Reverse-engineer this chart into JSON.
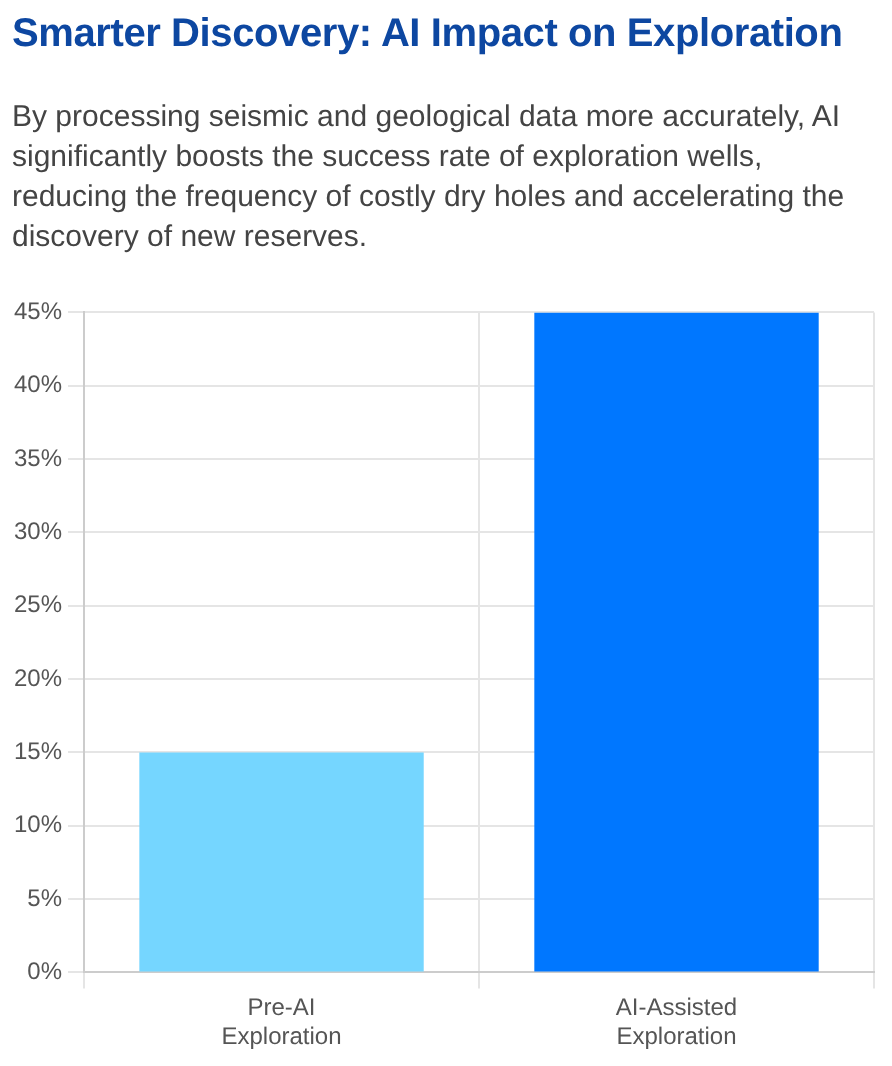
{
  "chart_data": {
    "type": "bar",
    "title": "Smarter Discovery: AI Impact on Exploration",
    "subtitle": "By processing seismic and geological data more accurately, AI significantly boosts the success rate of exploration wells, reducing the frequency of costly dry holes and accelerating the discovery of new reserves.",
    "categories": [
      "Pre-AI Exploration",
      "AI-Assisted Exploration"
    ],
    "values": [
      15,
      45
    ],
    "colors": [
      "#75d6ff",
      "#0077ff"
    ],
    "ylim": [
      0,
      45
    ],
    "yticks": [
      {
        "value": 0,
        "label": "0%"
      },
      {
        "value": 5,
        "label": "5%"
      },
      {
        "value": 10,
        "label": "10%"
      },
      {
        "value": 15,
        "label": "15%"
      },
      {
        "value": 20,
        "label": "20%"
      },
      {
        "value": 25,
        "label": "25%"
      },
      {
        "value": 30,
        "label": "30%"
      },
      {
        "value": 35,
        "label": "35%"
      },
      {
        "value": 40,
        "label": "40%"
      },
      {
        "value": 45,
        "label": "45%"
      }
    ],
    "grid": true
  }
}
